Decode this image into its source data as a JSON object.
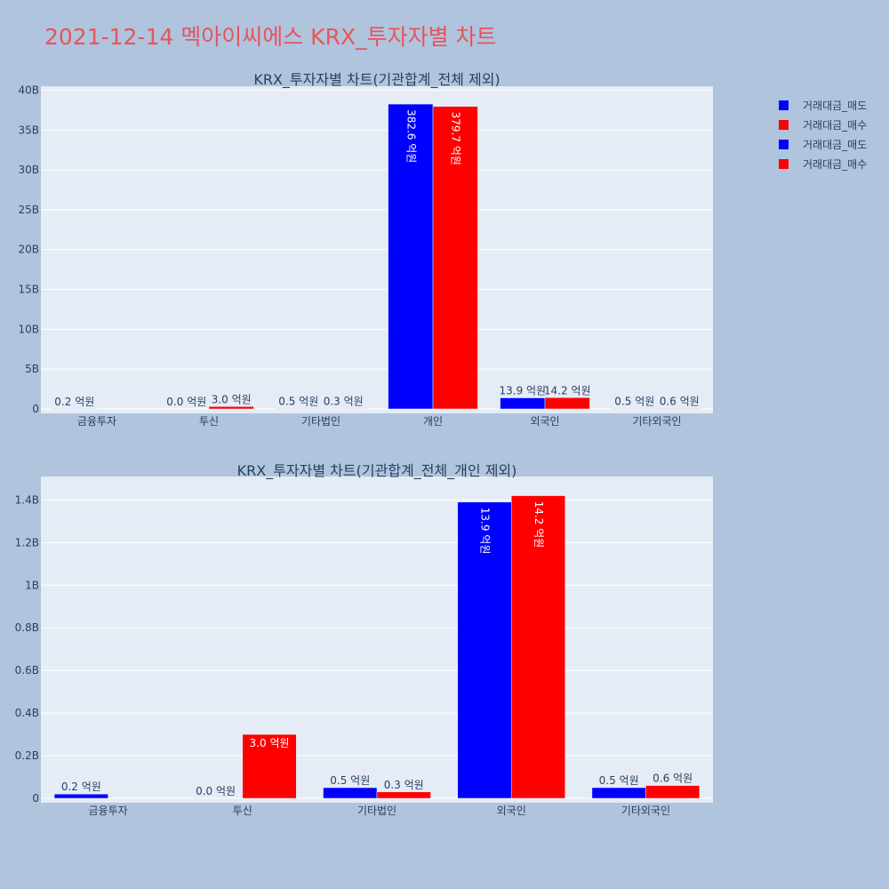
{
  "title": "2021-12-14 멕아이씨에스 KRX_투자자별 차트",
  "legend": [
    {
      "label": "거래대금_매도",
      "color": "#0000ff"
    },
    {
      "label": "거래대금_매수",
      "color": "#ff0000"
    },
    {
      "label": "거래대금_매도",
      "color": "#0000ff"
    },
    {
      "label": "거래대금_매수",
      "color": "#ff0000"
    }
  ],
  "chart_data": [
    {
      "type": "bar",
      "title": "KRX_투자자별 차트(기관합계_전체 제외)",
      "categories": [
        "금융투자",
        "투신",
        "기타법인",
        "개인",
        "외국인",
        "기타외국인"
      ],
      "ylim": [
        0,
        40500000000
      ],
      "yticks": [
        0,
        5000000000,
        10000000000,
        15000000000,
        20000000000,
        25000000000,
        30000000000,
        35000000000,
        40000000000
      ],
      "ytick_labels": [
        "0",
        "5B",
        "10B",
        "15B",
        "20B",
        "25B",
        "30B",
        "35B",
        "40B"
      ],
      "series": [
        {
          "name": "거래대금_매도",
          "color": "#0000ff",
          "values": [
            20000000,
            0,
            50000000,
            38260000000,
            1390000000,
            50000000
          ],
          "labels": [
            "0.2 억원",
            "0.0 억원",
            "0.5 억원",
            "382.6 억원",
            "13.9 억원",
            "0.5 억원"
          ]
        },
        {
          "name": "거래대금_매수",
          "color": "#ff0000",
          "values": [
            0,
            300000000,
            30000000,
            37970000000,
            1420000000,
            60000000
          ],
          "labels": [
            "",
            "3.0 억원",
            "0.3 억원",
            "379.7 억원",
            "14.2 억원",
            "0.6 억원"
          ]
        }
      ]
    },
    {
      "type": "bar",
      "title": "KRX_투자자별 차트(기관합계_전체_개인 제외)",
      "categories": [
        "금융투자",
        "투신",
        "기타법인",
        "외국인",
        "기타외국인"
      ],
      "ylim": [
        0,
        1510000000
      ],
      "yticks": [
        0,
        200000000,
        400000000,
        600000000,
        800000000,
        1000000000,
        1200000000,
        1400000000
      ],
      "ytick_labels": [
        "0",
        "0.2B",
        "0.4B",
        "0.6B",
        "0.8B",
        "1B",
        "1.2B",
        "1.4B"
      ],
      "series": [
        {
          "name": "거래대금_매도",
          "color": "#0000ff",
          "values": [
            20000000,
            0,
            50000000,
            1390000000,
            50000000
          ],
          "labels": [
            "0.2 억원",
            "0.0 억원",
            "0.5 억원",
            "13.9 억원",
            "0.5 억원"
          ]
        },
        {
          "name": "거래대금_매수",
          "color": "#ff0000",
          "values": [
            0,
            300000000,
            30000000,
            1420000000,
            60000000
          ],
          "labels": [
            "",
            "3.0 억원",
            "0.3 억원",
            "14.2 억원",
            "0.6 억원"
          ]
        }
      ]
    }
  ]
}
